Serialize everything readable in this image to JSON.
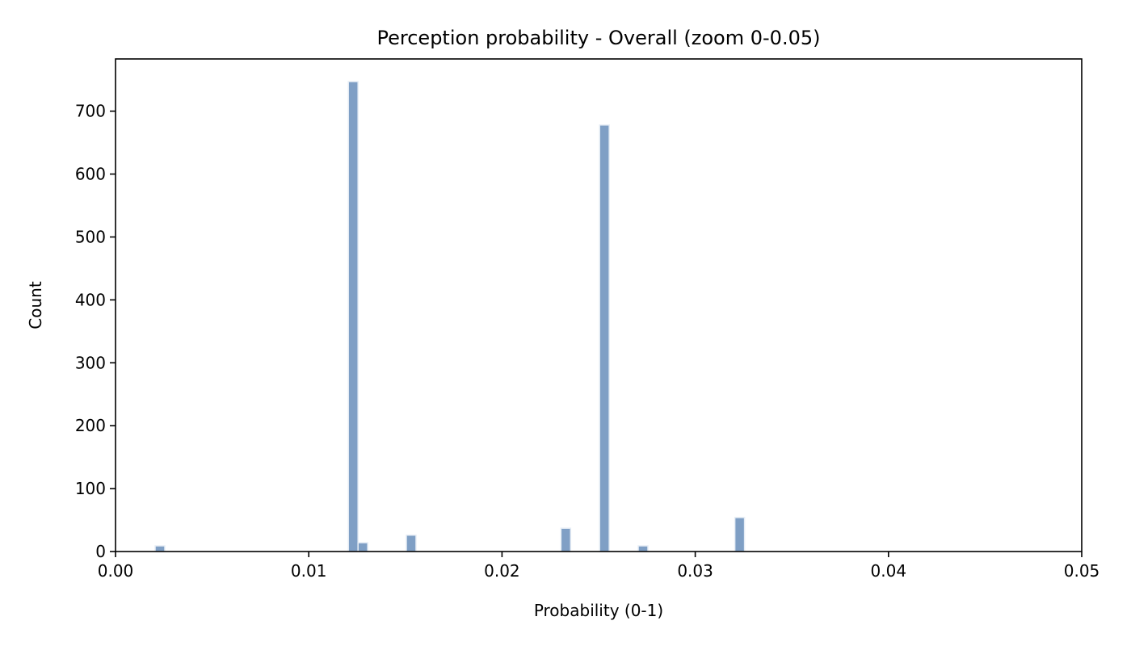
{
  "chart_data": {
    "type": "bar",
    "title": "Perception probability - Overall (zoom 0-0.05)",
    "xlabel": "Probability (0-1)",
    "ylabel": "Count",
    "xlim": [
      0,
      0.05
    ],
    "ylim": [
      0,
      783
    ],
    "xticks": [
      0,
      0.01,
      0.02,
      0.03,
      0.04,
      0.05
    ],
    "xtick_labels": [
      "0.00",
      "0.01",
      "0.02",
      "0.03",
      "0.04",
      "0.05"
    ],
    "yticks": [
      0,
      100,
      200,
      300,
      400,
      500,
      600,
      700
    ],
    "ytick_labels": [
      "0",
      "100",
      "200",
      "300",
      "400",
      "500",
      "600",
      "700"
    ],
    "bin_width": 0.0005,
    "bins": [
      {
        "x": 0.0023,
        "count": 9
      },
      {
        "x": 0.0123,
        "count": 747
      },
      {
        "x": 0.0128,
        "count": 14
      },
      {
        "x": 0.0153,
        "count": 26
      },
      {
        "x": 0.0233,
        "count": 37
      },
      {
        "x": 0.0253,
        "count": 678
      },
      {
        "x": 0.0273,
        "count": 9
      },
      {
        "x": 0.0323,
        "count": 54
      }
    ],
    "bar_color": "#7f9fc5",
    "bar_edge_color": "#e6edf5",
    "grid": false,
    "legend": "none"
  }
}
